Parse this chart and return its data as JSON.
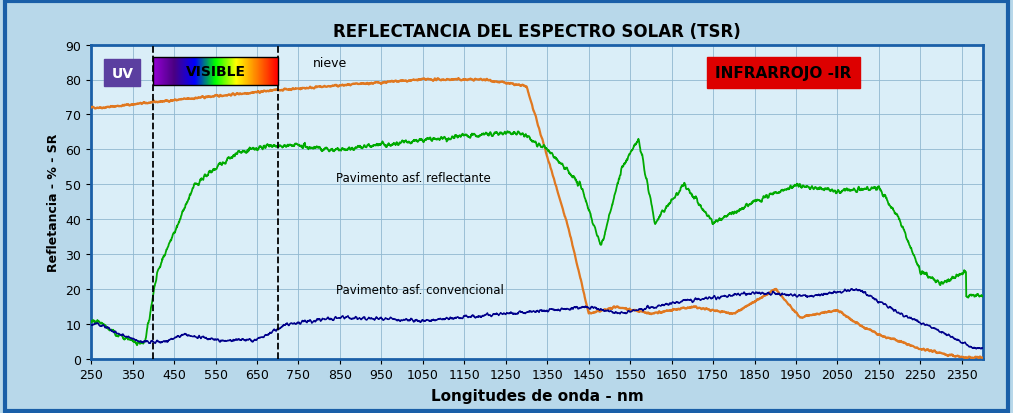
{
  "title": "REFLECTANCIA DEL ESPECTRO SOLAR (TSR)",
  "xlabel": "Longitudes de onda - nm",
  "ylabel": "Refletancia - % - SR",
  "xlim": [
    250,
    2400
  ],
  "ylim": [
    0,
    90
  ],
  "yticks": [
    0,
    10,
    20,
    30,
    40,
    50,
    60,
    70,
    80,
    90
  ],
  "xticks": [
    250,
    350,
    450,
    550,
    650,
    750,
    850,
    950,
    1050,
    1150,
    1250,
    1350,
    1450,
    1550,
    1650,
    1750,
    1850,
    1950,
    2050,
    2150,
    2250,
    2350
  ],
  "uv_vline": 400,
  "vis_vline": 700,
  "bg_color": "#b8d8ea",
  "plot_bg_color": "#daeef8",
  "border_color": "#1a5fa8",
  "grid_color": "#90b8d0",
  "snow_color": "#e07820",
  "reflective_color": "#00aa00",
  "conventional_color": "#00008b",
  "title_fontsize": 12,
  "label_fontsize": 11,
  "tick_fontsize": 9,
  "uv_box_color": "#5b3fa0",
  "uv_text_color": "#ffffff",
  "ir_box_color": "#dd0000",
  "ir_text_color": "#000000",
  "annotation_snow": "nieve",
  "annotation_reflective": "Pavimento asf. reflectante",
  "annotation_conventional": "Pavimento asf. convencional"
}
